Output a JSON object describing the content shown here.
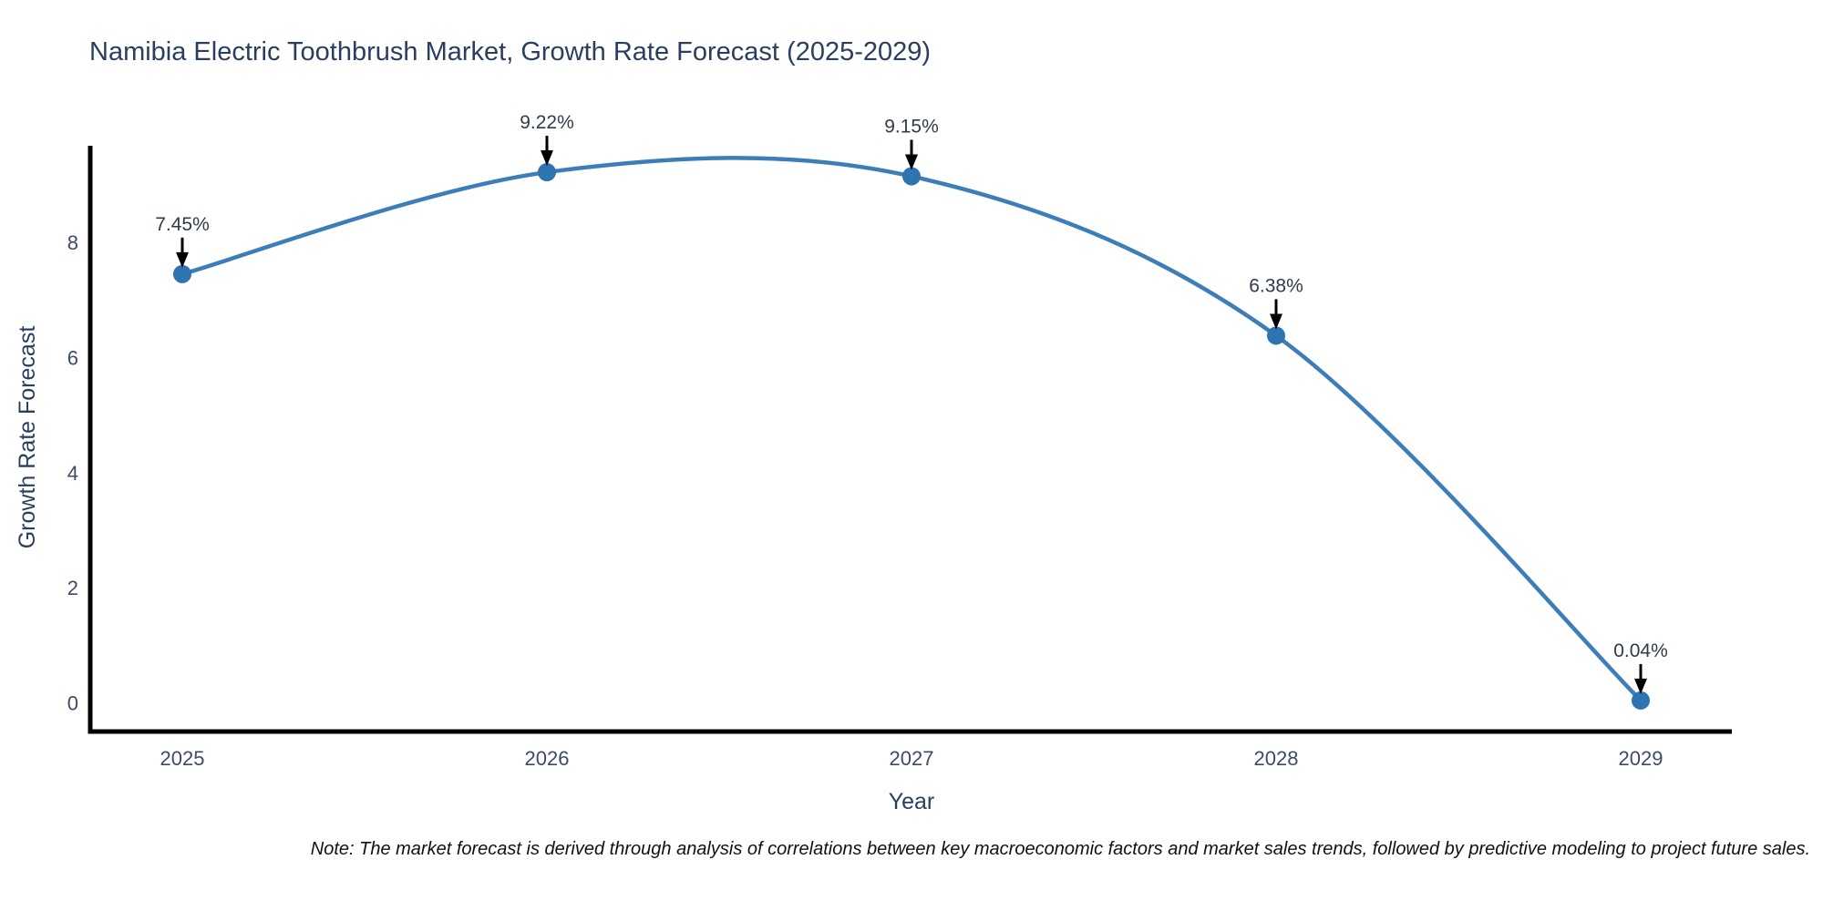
{
  "note": "Note: The market forecast is derived through analysis of correlations between key macroeconomic factors and market sales trends, followed by predictive modeling to project future sales.",
  "chart_data": {
    "type": "line",
    "title": "Namibia Electric Toothbrush Market, Growth Rate Forecast (2025-2029)",
    "categories": [
      "2025",
      "2026",
      "2027",
      "2028",
      "2029"
    ],
    "values": [
      7.45,
      9.22,
      9.15,
      6.38,
      0.04
    ],
    "point_labels": [
      "7.45%",
      "9.22%",
      "9.15%",
      "6.38%",
      "0.04%"
    ],
    "xlabel": "Year",
    "ylabel": "Growth Rate Forecast",
    "yticks": [
      0,
      2,
      4,
      6,
      8
    ],
    "ylim": [
      -0.5,
      9.68
    ],
    "line_shape": "spline",
    "grid": false,
    "legend": "none",
    "colors": {
      "line": "#3d7eb8",
      "marker": "#2e74b0",
      "axis": "#000000",
      "annotation_arrow": "#000000"
    }
  }
}
